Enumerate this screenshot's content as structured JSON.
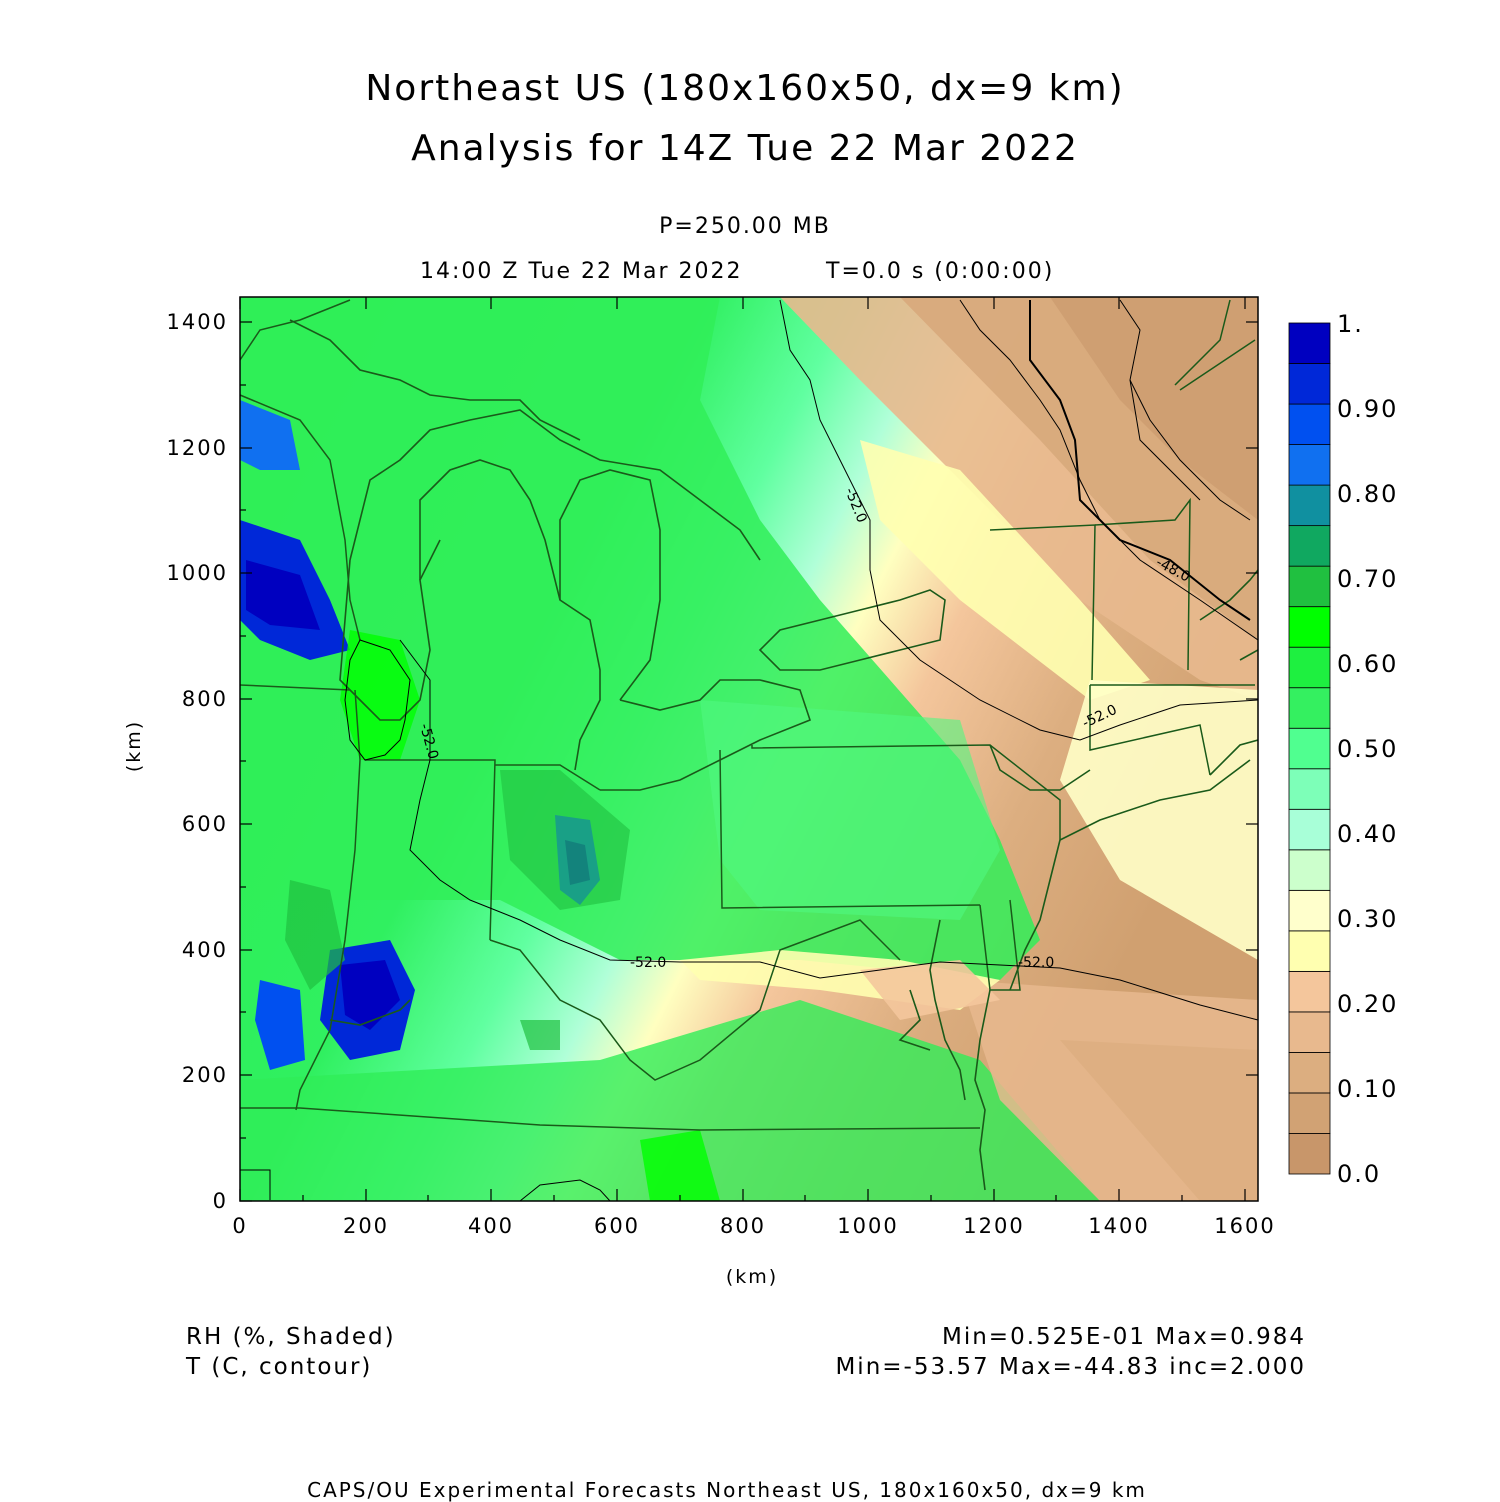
{
  "title_line1": "Northeast US (180x160x50, dx=9 km)",
  "title_line2": "Analysis for 14Z Tue 22 Mar 2022",
  "level": "P=250.00 MB",
  "valid_time": "14:00 Z Tue 22 Mar 2022",
  "forecast_time": "T=0.0 s (0:00:00)",
  "xlabel": "(km)",
  "ylabel": "(km)",
  "x_ticks": [
    "0",
    "200",
    "400",
    "600",
    "800",
    "1000",
    "1200",
    "1400",
    "1600"
  ],
  "y_ticks": [
    "0",
    "200",
    "400",
    "600",
    "800",
    "1000",
    "1200",
    "1400"
  ],
  "colorbar_labels": [
    "1.",
    "0.90",
    "0.80",
    "0.70",
    "0.60",
    "0.50",
    "0.40",
    "0.30",
    "0.20",
    "0.10",
    "0.0"
  ],
  "colorbar_colors": [
    "#c8966a",
    "#d1a274",
    "#dcae80",
    "#e8b98e",
    "#f4c69c",
    "#ffffb0",
    "#ffffcc",
    "#ccffcc",
    "#a8ffd8",
    "#7dffb8",
    "#50ff90",
    "#34f060",
    "#1ef040",
    "#00ff00",
    "#20c040",
    "#10a860",
    "#1090a0",
    "#1070f0",
    "#0050f0",
    "#0028d8",
    "#0000c0"
  ],
  "contour_labels": [
    "-52.0",
    "-52.0",
    "-52.0",
    "-52.0",
    "-48.0"
  ],
  "rh_legend": "RH (%, Shaded)",
  "t_legend": "T (C, contour)",
  "rh_stats": "Min=0.525E-01 Max=0.984",
  "t_stats": "Min=-53.57 Max=-44.83 inc=2.000",
  "footer": "CAPS/OU Experimental Forecasts  Northeast US, 180x160x50, dx=9 km"
}
